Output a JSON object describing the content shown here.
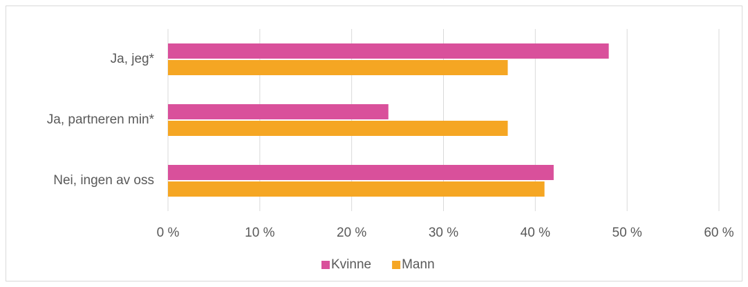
{
  "chart_data": {
    "type": "barh",
    "categories": [
      "Ja, jeg*",
      "Ja, partneren min*",
      "Nei, ingen av oss"
    ],
    "series": [
      {
        "name": "Kvinne",
        "color": "#d9509b",
        "values": [
          48,
          24,
          42
        ]
      },
      {
        "name": "Mann",
        "color": "#f5a623",
        "values": [
          37,
          37,
          41
        ]
      }
    ],
    "xlim": [
      0,
      60
    ],
    "xticks": [
      {
        "value": 0,
        "label": "0 %"
      },
      {
        "value": 10,
        "label": "10 %"
      },
      {
        "value": 20,
        "label": "20 %"
      },
      {
        "value": 30,
        "label": "30 %"
      },
      {
        "value": 40,
        "label": "40 %"
      },
      {
        "value": 50,
        "label": "50 %"
      },
      {
        "value": 60,
        "label": "60 %"
      }
    ],
    "grid": true,
    "legend": "bottom"
  }
}
